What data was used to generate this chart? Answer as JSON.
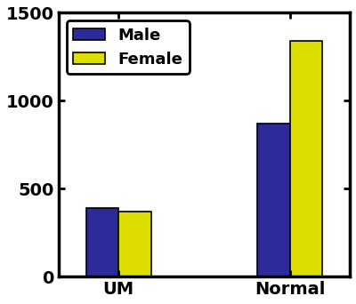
{
  "categories": [
    "UM",
    "Normal"
  ],
  "male_values": [
    390,
    870
  ],
  "female_values": [
    370,
    1340
  ],
  "male_color": "#2B2B9B",
  "female_color": "#DDDD00",
  "ylim": [
    0,
    1500
  ],
  "yticks": [
    0,
    500,
    1000,
    1500
  ],
  "legend_labels": [
    "Male",
    "Female"
  ],
  "bar_width": 0.38,
  "edge_color": "#000000",
  "background_color": "#ffffff",
  "tick_label_fontsize": 14,
  "legend_fontsize": 13,
  "axis_linewidth": 2.5,
  "x_positions": [
    1,
    3
  ]
}
